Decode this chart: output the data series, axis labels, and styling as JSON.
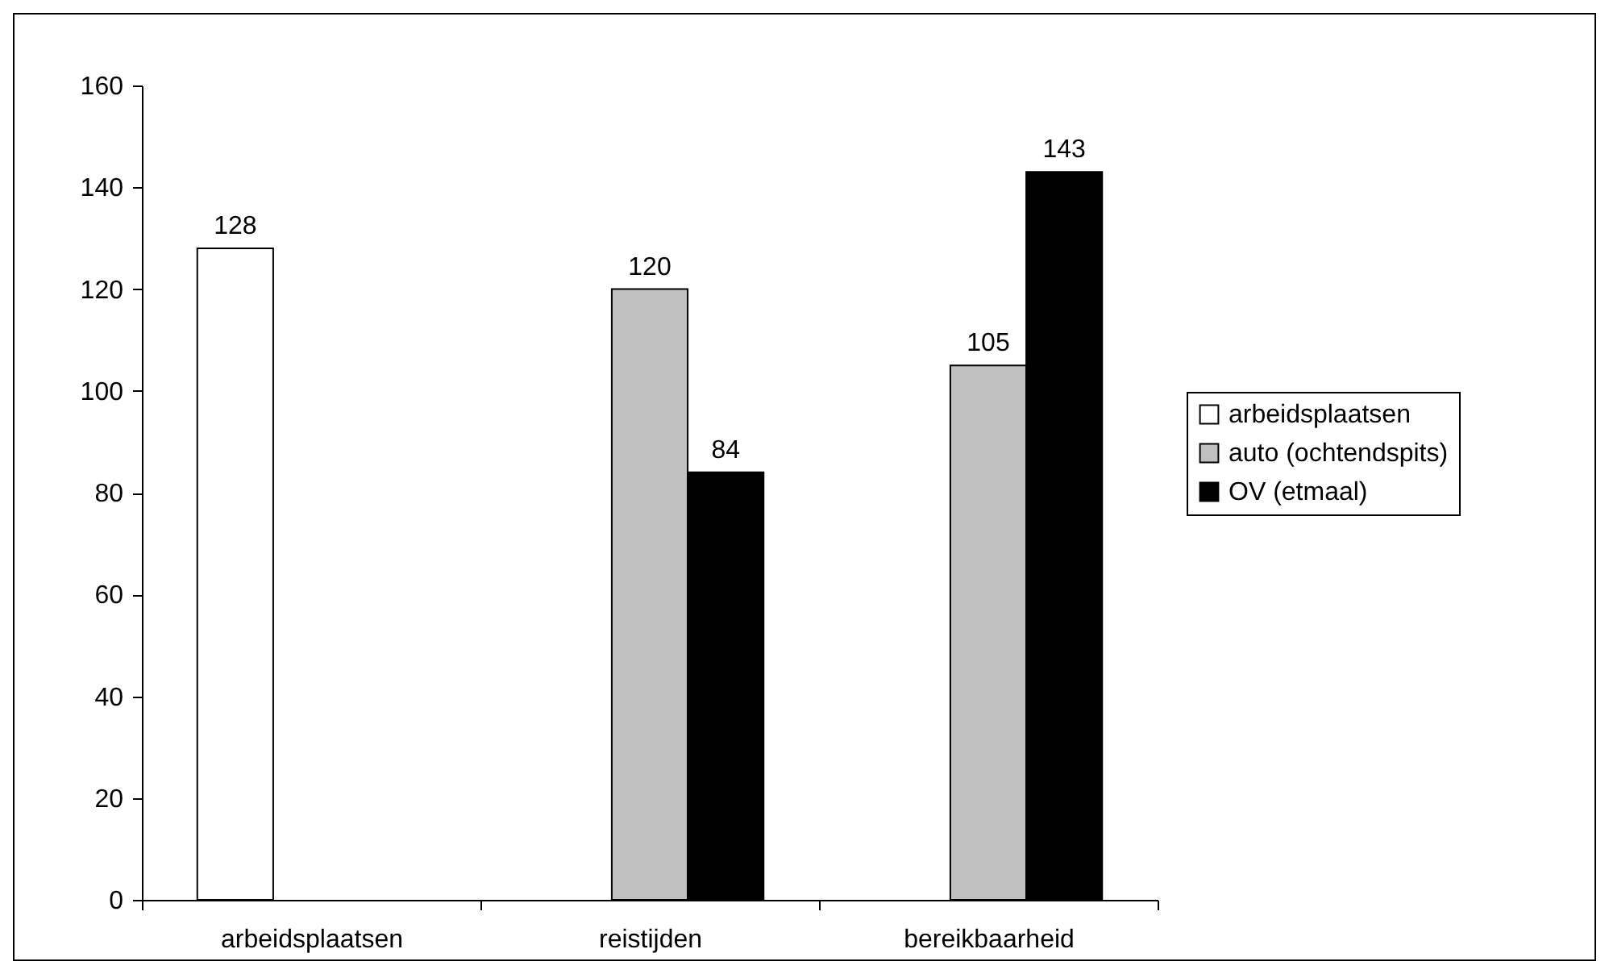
{
  "chart_data": {
    "type": "bar",
    "categories": [
      "arbeidsplaatsen",
      "reistijden",
      "bereikbaarheid"
    ],
    "series": [
      {
        "name": "arbeidsplaatsen",
        "color": "#ffffff",
        "values": [
          128,
          null,
          null
        ]
      },
      {
        "name": "auto (ochtendspits)",
        "color": "#c0c0c0",
        "values": [
          null,
          120,
          105
        ]
      },
      {
        "name": "OV (etmaal)",
        "color": "#000000",
        "values": [
          null,
          84,
          143
        ]
      }
    ],
    "ylim": [
      0,
      160
    ],
    "yticks": [
      0,
      20,
      40,
      60,
      80,
      100,
      120,
      140,
      160
    ],
    "data_labels": true,
    "grid": false,
    "legend": "right"
  }
}
